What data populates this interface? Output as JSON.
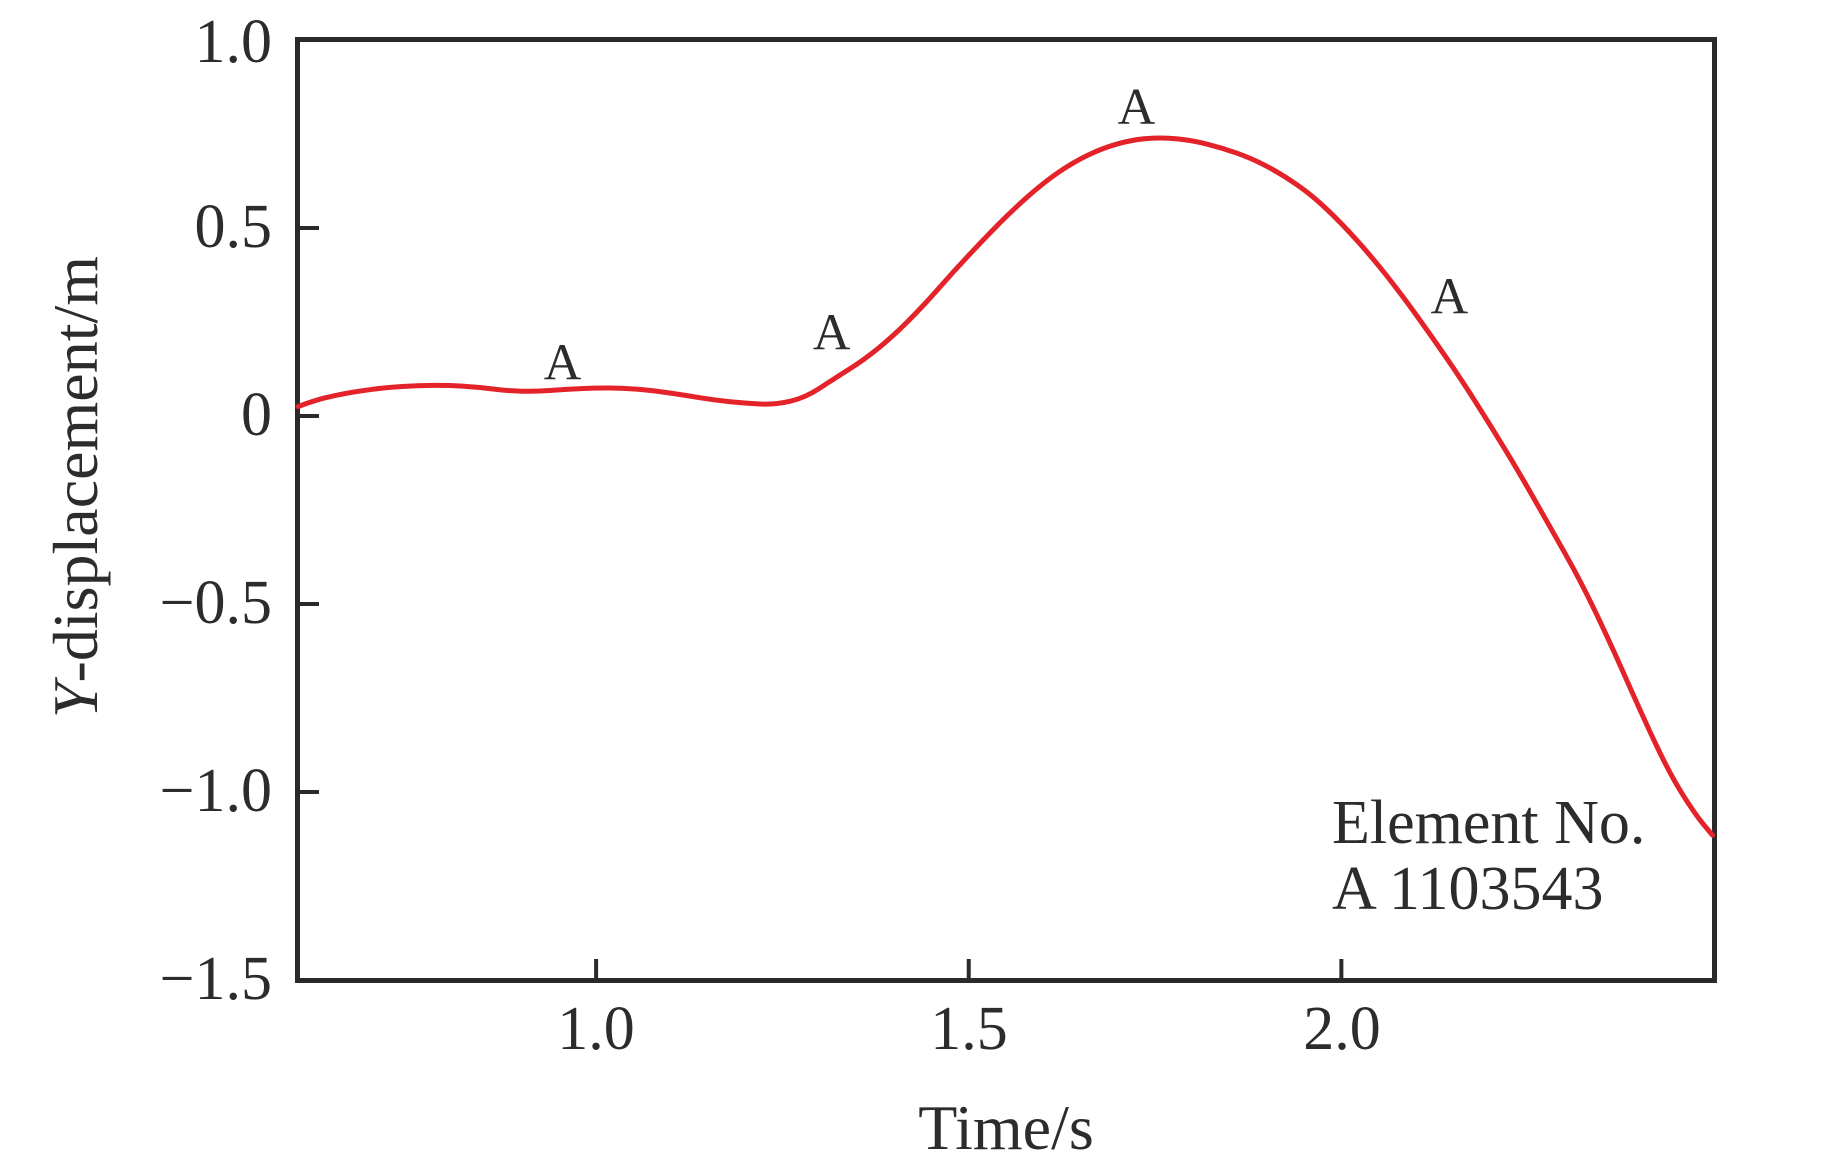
{
  "figure": {
    "background": "#ffffff",
    "axis_color": "#2b2a28",
    "text_color": "#2d2c2b"
  },
  "chart_data": {
    "type": "line",
    "title": "",
    "xlabel": "Time/s",
    "ylabel": "Y-displacement/m",
    "ylabel_italic_part": "Y",
    "ylabel_rest": "-displacement/m",
    "xlim": [
      0.6,
      2.5
    ],
    "ylim": [
      -1.5,
      1.0
    ],
    "grid": false,
    "xticks": {
      "values": [
        1.0,
        1.5,
        2.0
      ],
      "labels": [
        "1.0",
        "1.5",
        "2.0"
      ]
    },
    "yticks": {
      "values": [
        1.0,
        0.5,
        0,
        -0.5,
        -1.0,
        -1.5
      ],
      "labels": [
        "1.0",
        "0.5",
        "0",
        "−0.5",
        "−1.0",
        "−1.5"
      ]
    },
    "series": [
      {
        "name": "A 1103543",
        "color": "#e32329",
        "line_width": 5,
        "marker_letter": "A",
        "x": [
          0.6,
          0.62,
          0.65,
          0.68,
          0.72,
          0.76,
          0.8,
          0.84,
          0.88,
          0.92,
          0.96,
          1.0,
          1.04,
          1.08,
          1.12,
          1.16,
          1.2,
          1.24,
          1.28,
          1.32,
          1.36,
          1.4,
          1.44,
          1.48,
          1.52,
          1.56,
          1.6,
          1.64,
          1.68,
          1.72,
          1.76,
          1.8,
          1.84,
          1.88,
          1.92,
          1.96,
          2.0,
          2.04,
          2.08,
          2.12,
          2.16,
          2.2,
          2.24,
          2.28,
          2.32,
          2.36,
          2.4,
          2.44,
          2.475,
          2.498
        ],
        "y": [
          0.025,
          0.04,
          0.055,
          0.066,
          0.076,
          0.081,
          0.082,
          0.077,
          0.067,
          0.065,
          0.071,
          0.075,
          0.074,
          0.067,
          0.055,
          0.042,
          0.034,
          0.03,
          0.048,
          0.1,
          0.15,
          0.215,
          0.295,
          0.385,
          0.47,
          0.55,
          0.62,
          0.675,
          0.713,
          0.735,
          0.741,
          0.733,
          0.713,
          0.685,
          0.643,
          0.588,
          0.513,
          0.425,
          0.325,
          0.215,
          0.1,
          -0.025,
          -0.155,
          -0.295,
          -0.435,
          -0.6,
          -0.78,
          -0.95,
          -1.06,
          -1.115
        ],
        "marker_labels": [
          {
            "t": 0.955,
            "v": 0.145
          },
          {
            "t": 1.316,
            "v": 0.225
          },
          {
            "t": 1.725,
            "v": 0.825
          },
          {
            "t": 2.145,
            "v": 0.32
          }
        ]
      }
    ]
  },
  "annotation": {
    "line1": "Element No.",
    "line2": "A 1103543"
  }
}
